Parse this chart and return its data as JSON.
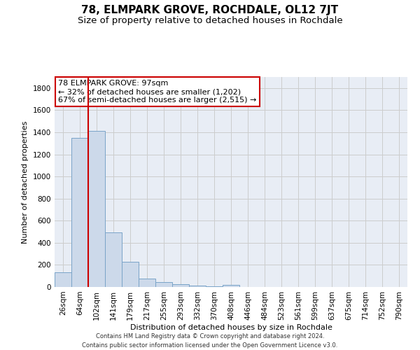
{
  "title": "78, ELMPARK GROVE, ROCHDALE, OL12 7JT",
  "subtitle": "Size of property relative to detached houses in Rochdale",
  "xlabel": "Distribution of detached houses by size in Rochdale",
  "ylabel": "Number of detached properties",
  "categories": [
    "26sqm",
    "64sqm",
    "102sqm",
    "141sqm",
    "179sqm",
    "217sqm",
    "255sqm",
    "293sqm",
    "332sqm",
    "370sqm",
    "408sqm",
    "446sqm",
    "484sqm",
    "523sqm",
    "561sqm",
    "599sqm",
    "637sqm",
    "675sqm",
    "714sqm",
    "752sqm",
    "790sqm"
  ],
  "values": [
    135,
    1350,
    1410,
    495,
    225,
    75,
    45,
    28,
    15,
    5,
    20,
    0,
    0,
    0,
    0,
    0,
    0,
    0,
    0,
    0,
    0
  ],
  "bar_color": "#ccd9ea",
  "bar_edge_color": "#7aa4c8",
  "vline_x": 1.5,
  "vline_color": "#cc0000",
  "annotation_line1": "78 ELMPARK GROVE: 97sqm",
  "annotation_line2": "← 32% of detached houses are smaller (1,202)",
  "annotation_line3": "67% of semi-detached houses are larger (2,515) →",
  "annotation_box_color": "#cc0000",
  "annotation_box_fill": "#ffffff",
  "ylim": [
    0,
    1900
  ],
  "yticks": [
    0,
    200,
    400,
    600,
    800,
    1000,
    1200,
    1400,
    1600,
    1800
  ],
  "grid_color": "#cccccc",
  "bg_color": "#e8edf5",
  "footer_line1": "Contains HM Land Registry data © Crown copyright and database right 2024.",
  "footer_line2": "Contains public sector information licensed under the Open Government Licence v3.0.",
  "title_fontsize": 11,
  "subtitle_fontsize": 9.5,
  "label_fontsize": 8,
  "tick_fontsize": 7.5,
  "annotation_fontsize": 8
}
